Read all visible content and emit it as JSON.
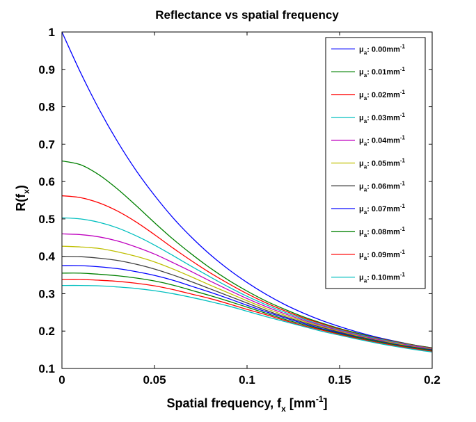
{
  "chart_data": {
    "type": "line",
    "title": "Reflectance vs spatial frequency",
    "xlabel": {
      "main": "Spatial frequency, f",
      "sub": "x",
      "pre": "[mm",
      "sup": "-1",
      "post": "]"
    },
    "ylabel": {
      "main": "R(f",
      "sub": "x",
      "post": ")"
    },
    "xlim": [
      0,
      0.2
    ],
    "ylim": [
      0.1,
      1.0
    ],
    "xticks": [
      "0",
      "0.05",
      "0.1",
      "0.15",
      "0.2"
    ],
    "yticks": [
      "0.1",
      "0.2",
      "0.3",
      "0.4",
      "0.5",
      "0.6",
      "0.7",
      "0.8",
      "0.9",
      "1"
    ],
    "legend_position": "top-right",
    "x": [
      0,
      0.01,
      0.02,
      0.03,
      0.04,
      0.05,
      0.06,
      0.07,
      0.08,
      0.09,
      0.1,
      0.11,
      0.12,
      0.13,
      0.14,
      0.15,
      0.16,
      0.17,
      0.18,
      0.19,
      0.2
    ],
    "series": [
      {
        "name": "μa: 0.00mm-1",
        "color": "#0000FF",
        "values": [
          1.0,
          0.892,
          0.794,
          0.707,
          0.63,
          0.563,
          0.503,
          0.451,
          0.405,
          0.365,
          0.33,
          0.299,
          0.272,
          0.249,
          0.229,
          0.212,
          0.197,
          0.184,
          0.173,
          0.163,
          0.155
        ]
      },
      {
        "name": "μa: 0.01mm-1",
        "color": "#008000",
        "values": [
          0.655,
          0.645,
          0.618,
          0.58,
          0.536,
          0.49,
          0.446,
          0.406,
          0.369,
          0.336,
          0.307,
          0.281,
          0.259,
          0.239,
          0.222,
          0.207,
          0.194,
          0.182,
          0.172,
          0.163,
          0.155
        ]
      },
      {
        "name": "μa: 0.02mm-1",
        "color": "#FF0000",
        "values": [
          0.562,
          0.557,
          0.543,
          0.521,
          0.492,
          0.458,
          0.422,
          0.388,
          0.356,
          0.327,
          0.3,
          0.276,
          0.255,
          0.236,
          0.22,
          0.205,
          0.192,
          0.181,
          0.171,
          0.162,
          0.154
        ]
      },
      {
        "name": "μa: 0.03mm-1",
        "color": "#00BFBF",
        "values": [
          0.503,
          0.5,
          0.491,
          0.476,
          0.455,
          0.43,
          0.402,
          0.373,
          0.345,
          0.318,
          0.293,
          0.271,
          0.251,
          0.233,
          0.217,
          0.203,
          0.191,
          0.18,
          0.17,
          0.161,
          0.153
        ]
      },
      {
        "name": "μa: 0.04mm-1",
        "color": "#BF00BF",
        "values": [
          0.46,
          0.458,
          0.452,
          0.441,
          0.425,
          0.406,
          0.383,
          0.359,
          0.334,
          0.31,
          0.287,
          0.266,
          0.247,
          0.23,
          0.215,
          0.201,
          0.189,
          0.178,
          0.168,
          0.16,
          0.152
        ]
      },
      {
        "name": "μa: 0.05mm-1",
        "color": "#BFBF00",
        "values": [
          0.427,
          0.425,
          0.421,
          0.412,
          0.4,
          0.385,
          0.366,
          0.345,
          0.323,
          0.302,
          0.281,
          0.261,
          0.243,
          0.227,
          0.212,
          0.199,
          0.187,
          0.176,
          0.167,
          0.158,
          0.151
        ]
      },
      {
        "name": "μa: 0.06mm-1",
        "color": "#404040",
        "values": [
          0.4,
          0.399,
          0.395,
          0.389,
          0.379,
          0.366,
          0.35,
          0.332,
          0.313,
          0.294,
          0.275,
          0.256,
          0.239,
          0.224,
          0.21,
          0.197,
          0.185,
          0.175,
          0.165,
          0.157,
          0.15
        ]
      },
      {
        "name": "μa: 0.07mm-1",
        "color": "#0000FF",
        "values": [
          0.375,
          0.375,
          0.372,
          0.367,
          0.359,
          0.349,
          0.336,
          0.32,
          0.304,
          0.287,
          0.269,
          0.252,
          0.236,
          0.221,
          0.207,
          0.195,
          0.183,
          0.173,
          0.164,
          0.156,
          0.149
        ]
      },
      {
        "name": "μa: 0.08mm-1",
        "color": "#008000",
        "values": [
          0.355,
          0.355,
          0.352,
          0.348,
          0.342,
          0.334,
          0.323,
          0.309,
          0.295,
          0.28,
          0.264,
          0.248,
          0.232,
          0.218,
          0.205,
          0.193,
          0.182,
          0.172,
          0.163,
          0.155,
          0.148
        ]
      },
      {
        "name": "μa: 0.09mm-1",
        "color": "#FF0000",
        "values": [
          0.338,
          0.338,
          0.336,
          0.333,
          0.328,
          0.321,
          0.311,
          0.299,
          0.287,
          0.273,
          0.258,
          0.244,
          0.229,
          0.215,
          0.203,
          0.191,
          0.18,
          0.17,
          0.161,
          0.153,
          0.146
        ]
      },
      {
        "name": "μa: 0.10mm-1",
        "color": "#00BFBF",
        "values": [
          0.322,
          0.322,
          0.321,
          0.318,
          0.314,
          0.308,
          0.3,
          0.29,
          0.279,
          0.267,
          0.253,
          0.239,
          0.226,
          0.213,
          0.2,
          0.189,
          0.178,
          0.168,
          0.159,
          0.151,
          0.144
        ]
      }
    ]
  }
}
